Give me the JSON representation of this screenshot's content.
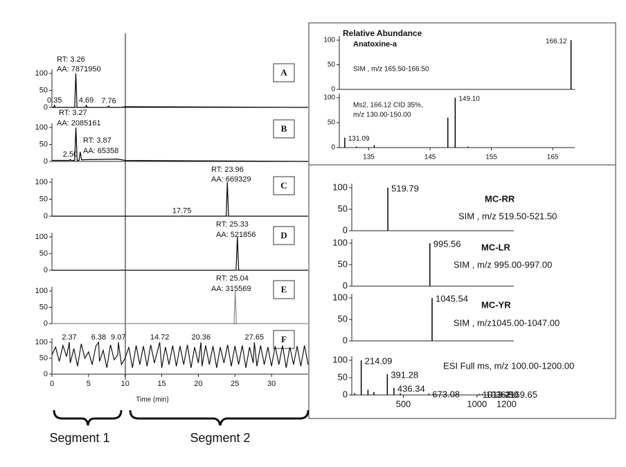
{
  "segments": [
    "Segment 1",
    "Segment 2"
  ],
  "chart_data": [
    {
      "type": "line",
      "panel_label": "A",
      "color": "#000000",
      "xlim": [
        0,
        35
      ],
      "ylim": [
        0,
        100
      ],
      "yticks": [
        0,
        50,
        100
      ],
      "x": [
        0,
        0.25,
        0.35,
        0.45,
        3.1,
        3.26,
        3.42,
        4.55,
        4.69,
        4.83,
        7.6,
        7.76,
        7.92,
        9.5,
        10,
        35
      ],
      "values": [
        0,
        0,
        6,
        0,
        0,
        100,
        0,
        0,
        6,
        0,
        0,
        4,
        0,
        0,
        2,
        0
      ],
      "x_labels": [
        null,
        null,
        "0.35",
        null,
        null,
        null,
        null,
        null,
        "4.69",
        null,
        null,
        "7.76",
        null,
        null,
        null,
        null
      ],
      "annotations": [
        "RT: 3.26",
        "AA: 7871950"
      ]
    },
    {
      "type": "line",
      "panel_label": "B",
      "color": "#000000",
      "xlim": [
        0,
        35
      ],
      "ylim": [
        0,
        100
      ],
      "yticks": [
        0,
        50,
        100
      ],
      "x": [
        0,
        2.4,
        2.5,
        2.6,
        3.1,
        3.27,
        3.44,
        3.7,
        3.87,
        4.04,
        6,
        9,
        10,
        35
      ],
      "values": [
        3,
        3,
        6,
        3,
        3,
        100,
        3,
        3,
        28,
        5,
        6,
        7,
        3,
        0
      ],
      "x_labels": [
        null,
        null,
        "2.50",
        null,
        null,
        null,
        null,
        null,
        null,
        null,
        null,
        null,
        null,
        null
      ],
      "annotations": [
        "RT: 3.27",
        "AA: 2085161",
        "RT: 3.87",
        "AA: 65358"
      ]
    },
    {
      "type": "line",
      "panel_label": "C",
      "color": "#000000",
      "xlim": [
        0,
        35
      ],
      "ylim": [
        0,
        100
      ],
      "yticks": [
        0,
        50,
        100
      ],
      "x": [
        0,
        17.6,
        17.75,
        17.9,
        23.8,
        23.96,
        24.12,
        35
      ],
      "values": [
        0,
        0,
        1,
        0,
        0,
        100,
        0,
        0
      ],
      "x_labels": [
        null,
        null,
        "17.75",
        null,
        null,
        null,
        null,
        null
      ],
      "annotations": [
        "RT: 23.96",
        "AA: 669329"
      ]
    },
    {
      "type": "line",
      "panel_label": "D",
      "color": "#000000",
      "xlim": [
        0,
        35
      ],
      "ylim": [
        0,
        100
      ],
      "yticks": [
        0,
        50,
        100
      ],
      "x": [
        0,
        25.15,
        25.33,
        25.51,
        35
      ],
      "values": [
        0,
        0,
        100,
        0,
        0
      ],
      "annotations": [
        "RT: 25.33",
        "AA: 521856"
      ]
    },
    {
      "type": "line",
      "panel_label": "E",
      "color": "#888888",
      "xlim": [
        0,
        35
      ],
      "ylim": [
        0,
        100
      ],
      "yticks": [
        0,
        50,
        100
      ],
      "x": [
        0,
        24.88,
        25.04,
        25.2,
        35
      ],
      "values": [
        0,
        0,
        100,
        0,
        0
      ],
      "annotations": [
        "RT: 25.04",
        "AA: 315569"
      ]
    },
    {
      "type": "line",
      "panel_label": "F",
      "color": "#111111",
      "xlim": [
        0,
        35
      ],
      "ylim": [
        0,
        100
      ],
      "yticks": [
        0,
        50,
        100
      ],
      "xticks": [
        0,
        5,
        10,
        15,
        20,
        25,
        30
      ],
      "xlabel": "Time (min)",
      "x": [
        0,
        0.5,
        1,
        1.5,
        2,
        2.37,
        2.5,
        3,
        3.5,
        4,
        4.5,
        5,
        5.5,
        6,
        6.38,
        6.5,
        7,
        7.5,
        8,
        8.5,
        9,
        9.07,
        9.5,
        10,
        10.5,
        11,
        11.5,
        12,
        12.5,
        13,
        13.5,
        14,
        14.5,
        14.72,
        15,
        15.5,
        16,
        16.5,
        17,
        17.5,
        18,
        18.5,
        19,
        19.5,
        20,
        20.36,
        20.5,
        21,
        21.5,
        22,
        22.5,
        23,
        23.5,
        24,
        24.5,
        25,
        25.5,
        26,
        26.5,
        27,
        27.5,
        27.65,
        28,
        28.5,
        29,
        29.5,
        30,
        30.5,
        31,
        31.5,
        32,
        32.5,
        33,
        33.5,
        34,
        34.5,
        35
      ],
      "values": [
        60,
        85,
        40,
        90,
        55,
        100,
        35,
        80,
        25,
        95,
        50,
        70,
        30,
        88,
        100,
        40,
        75,
        20,
        92,
        45,
        60,
        100,
        30,
        50,
        85,
        20,
        90,
        30,
        88,
        25,
        92,
        35,
        80,
        100,
        20,
        85,
        30,
        90,
        25,
        88,
        30,
        92,
        20,
        85,
        35,
        100,
        25,
        90,
        30,
        88,
        20,
        85,
        35,
        92,
        25,
        88,
        30,
        90,
        20,
        85,
        35,
        100,
        25,
        90,
        30,
        85,
        25,
        88,
        30,
        90,
        20,
        85,
        30,
        88,
        25,
        90,
        30
      ],
      "x_labels": [
        null,
        null,
        null,
        null,
        null,
        "2.37",
        null,
        null,
        null,
        null,
        null,
        null,
        null,
        null,
        "6.38",
        null,
        null,
        null,
        null,
        null,
        null,
        "9.07",
        null,
        null,
        null,
        null,
        null,
        null,
        null,
        null,
        null,
        null,
        null,
        "14.72",
        null,
        null,
        null,
        null,
        null,
        null,
        null,
        null,
        null,
        null,
        null,
        "20.36",
        null,
        null,
        null,
        null,
        null,
        null,
        null,
        null,
        null,
        null,
        null,
        null,
        null,
        null,
        null,
        "27.65",
        null,
        null,
        null,
        null,
        null,
        null,
        null,
        null,
        null,
        null,
        null,
        null,
        null,
        null,
        null
      ]
    },
    {
      "type": "stick",
      "title": "Relative Abundance",
      "subtitle": "Anatoxine-a",
      "color": "#000000",
      "xlim": [
        165.5,
        166.13
      ],
      "ylim": [
        0,
        100
      ],
      "yticks": [
        0,
        50,
        100
      ],
      "x": [
        166.12
      ],
      "values": [
        100
      ],
      "x_labels": [
        "166.12"
      ],
      "annotations": [
        "SIM , m/z 165.50-166.50"
      ]
    },
    {
      "type": "stick",
      "color": "#000000",
      "xlim": [
        130.2,
        168.6
      ],
      "ylim": [
        0,
        100
      ],
      "yticks": [
        0,
        50,
        100
      ],
      "xticks": [
        135,
        145,
        155,
        165
      ],
      "x": [
        131.09,
        133.0,
        135.9,
        147.9,
        149.1,
        151.2
      ],
      "values": [
        20,
        2,
        5,
        60,
        100,
        2
      ],
      "x_labels": [
        "131.09",
        null,
        null,
        null,
        "149.10",
        null
      ],
      "annotations": [
        "Ms2, 166.12 CID 35%,",
        "m/z 130.00-150.00"
      ]
    },
    {
      "type": "stick",
      "subtitle": "MC-RR",
      "color": "#000000",
      "xlim": [
        519.3,
        521.5
      ],
      "ylim": [
        0,
        100
      ],
      "yticks": [
        0,
        50,
        100
      ],
      "x": [
        519.79
      ],
      "values": [
        100
      ],
      "x_labels": [
        "519.79"
      ],
      "annotations": [
        "SIM , m/z 519.50-521.50"
      ]
    },
    {
      "type": "stick",
      "subtitle": "MC-LR",
      "color": "#000000",
      "xlim": [
        994.5,
        996.7
      ],
      "ylim": [
        0,
        100
      ],
      "yticks": [
        0,
        50,
        100
      ],
      "x": [
        995.56
      ],
      "values": [
        100
      ],
      "x_labels": [
        "995.56"
      ],
      "annotations": [
        "SIM , m/z 995.00-997.00"
      ]
    },
    {
      "type": "stick",
      "subtitle": "MC-YR",
      "color": "#000000",
      "xlim": [
        1044.4,
        1046.7
      ],
      "ylim": [
        0,
        100
      ],
      "yticks": [
        0,
        50,
        100
      ],
      "x": [
        1045.54
      ],
      "values": [
        100
      ],
      "x_labels": [
        "1045.54"
      ],
      "annotations": [
        "SIM , m/z1045.00-1047.00"
      ]
    },
    {
      "type": "stick",
      "color": "#000000",
      "xlim": [
        150,
        1250
      ],
      "ylim": [
        0,
        100
      ],
      "yticks": [
        0,
        50,
        100
      ],
      "xticks": [
        500,
        1000,
        1200
      ],
      "x": [
        170,
        214.09,
        260,
        300,
        391.28,
        436.34,
        480,
        673.08,
        1013.21,
        1036.5,
        1169.65
      ],
      "values": [
        5,
        100,
        15,
        8,
        60,
        20,
        5,
        4,
        3,
        3,
        3
      ],
      "x_labels": [
        null,
        "214.09",
        null,
        null,
        "391.28",
        "436.34",
        null,
        "673.08",
        "1013.21",
        "1036.50",
        "1169.65"
      ],
      "annotations": [
        "ESI Full ms, m/z 100.00-1200.00"
      ]
    }
  ]
}
